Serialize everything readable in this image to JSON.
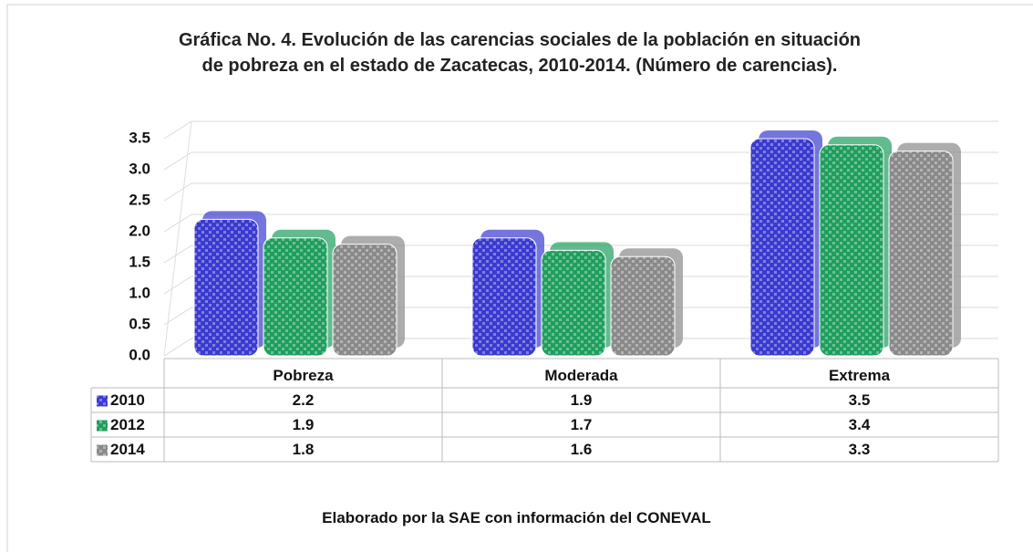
{
  "chart_data": {
    "type": "bar3d",
    "title": "Gráfica No. 4. Evolución de las carencias sociales de la población en situación de pobreza en el estado de Zacatecas, 2010-2014. (Número de carencias).",
    "categories": [
      "Pobreza",
      "Moderada",
      "Extrema"
    ],
    "series": [
      {
        "name": "2010",
        "color": "#3a3ad0",
        "values": [
          2.2,
          1.9,
          3.5
        ]
      },
      {
        "name": "2012",
        "color": "#1f9e5e",
        "values": [
          1.9,
          1.7,
          3.4
        ]
      },
      {
        "name": "2014",
        "color": "#8a8a8a",
        "values": [
          1.8,
          1.6,
          3.3
        ]
      }
    ],
    "ylim": [
      0,
      3.5
    ],
    "yticks": [
      {
        "value": 0,
        "label": "0.0"
      },
      0.5,
      {
        "value": 1,
        "label": "1.0"
      },
      1.5,
      {
        "value": 2,
        "label": "2.0"
      },
      2.5,
      {
        "value": 3,
        "label": "3.0"
      },
      3.5
    ],
    "grid": true,
    "source": "Elaborado por la SAE con información del CONEVAL"
  }
}
